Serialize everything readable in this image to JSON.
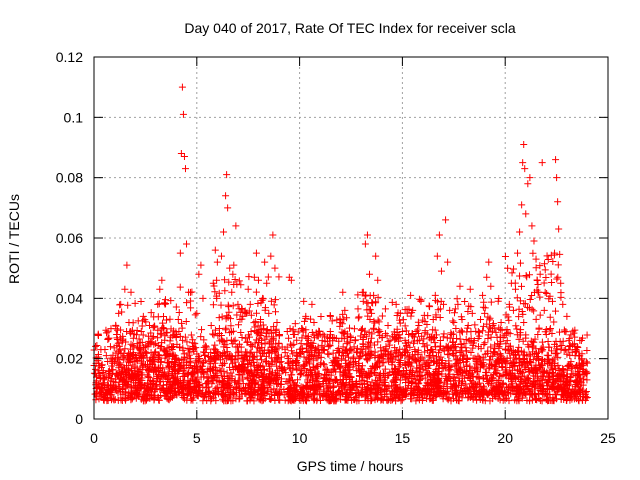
{
  "chart_data": {
    "type": "scatter",
    "title": "Day 040 of 2017, Rate Of TEC Index for receiver scla",
    "xlabel": "GPS time / hours",
    "ylabel": "ROTI / TECUs",
    "xlim": [
      0,
      25
    ],
    "ylim": [
      0,
      0.12
    ],
    "xticks": [
      0,
      5,
      10,
      15,
      20,
      25
    ],
    "xtick_labels": [
      "0",
      "5",
      "10",
      "15",
      "20",
      "25"
    ],
    "yticks": [
      0,
      0.02,
      0.04,
      0.06,
      0.08,
      0.1,
      0.12
    ],
    "ytick_labels": [
      "0",
      "0.02",
      "0.04",
      "0.06",
      "0.08",
      "0.1",
      "0.12"
    ],
    "grid": true,
    "marker": "+",
    "color": "#ff0000",
    "series": [
      {
        "name": "ROTI",
        "points": [
          [
            0.1,
            0.012
          ],
          [
            0.2,
            0.016
          ],
          [
            0.3,
            0.009
          ],
          [
            0.4,
            0.018
          ],
          [
            0.5,
            0.013
          ],
          [
            0.6,
            0.021
          ],
          [
            0.7,
            0.011
          ],
          [
            0.8,
            0.024
          ],
          [
            0.9,
            0.015
          ],
          [
            1.0,
            0.019
          ],
          [
            1.1,
            0.028
          ],
          [
            1.2,
            0.035
          ],
          [
            1.3,
            0.038
          ],
          [
            1.4,
            0.026
          ],
          [
            1.5,
            0.043
          ],
          [
            1.6,
            0.051
          ],
          [
            1.7,
            0.032
          ],
          [
            1.8,
            0.042
          ],
          [
            1.9,
            0.022
          ],
          [
            2.0,
            0.016
          ],
          [
            2.1,
            0.025
          ],
          [
            2.2,
            0.012
          ],
          [
            2.3,
            0.029
          ],
          [
            2.4,
            0.034
          ],
          [
            2.5,
            0.022
          ],
          [
            2.6,
            0.018
          ],
          [
            2.7,
            0.031
          ],
          [
            2.8,
            0.009
          ],
          [
            2.9,
            0.019
          ],
          [
            3.0,
            0.025
          ],
          [
            3.1,
            0.038
          ],
          [
            3.2,
            0.043
          ],
          [
            3.3,
            0.046
          ],
          [
            3.4,
            0.03
          ],
          [
            3.5,
            0.021
          ],
          [
            3.6,
            0.015
          ],
          [
            3.7,
            0.012
          ],
          [
            3.8,
            0.024
          ],
          [
            3.9,
            0.018
          ],
          [
            4.0,
            0.027
          ],
          [
            4.1,
            0.033
          ],
          [
            4.2,
            0.055
          ],
          [
            4.25,
            0.088
          ],
          [
            4.3,
            0.11
          ],
          [
            4.35,
            0.101
          ],
          [
            4.4,
            0.087
          ],
          [
            4.45,
            0.083
          ],
          [
            4.5,
            0.058
          ],
          [
            4.6,
            0.042
          ],
          [
            4.7,
            0.02
          ],
          [
            4.8,
            0.015
          ],
          [
            4.9,
            0.025
          ],
          [
            5.0,
            0.035
          ],
          [
            5.1,
            0.048
          ],
          [
            5.2,
            0.051
          ],
          [
            5.3,
            0.04
          ],
          [
            5.4,
            0.022
          ],
          [
            5.5,
            0.014
          ],
          [
            5.6,
            0.019
          ],
          [
            5.7,
            0.031
          ],
          [
            5.8,
            0.045
          ],
          [
            5.9,
            0.056
          ],
          [
            6.0,
            0.052
          ],
          [
            6.1,
            0.03
          ],
          [
            6.2,
            0.054
          ],
          [
            6.3,
            0.062
          ],
          [
            6.4,
            0.074
          ],
          [
            6.45,
            0.081
          ],
          [
            6.5,
            0.07
          ],
          [
            6.6,
            0.05
          ],
          [
            6.7,
            0.042
          ],
          [
            6.8,
            0.051
          ],
          [
            6.9,
            0.064
          ],
          [
            7.0,
            0.038
          ],
          [
            7.1,
            0.033
          ],
          [
            7.2,
            0.027
          ],
          [
            7.3,
            0.021
          ],
          [
            7.4,
            0.035
          ],
          [
            7.5,
            0.043
          ],
          [
            7.6,
            0.038
          ],
          [
            7.7,
            0.024
          ],
          [
            7.8,
            0.047
          ],
          [
            7.9,
            0.055
          ],
          [
            8.0,
            0.046
          ],
          [
            8.1,
            0.033
          ],
          [
            8.2,
            0.04
          ],
          [
            8.3,
            0.052
          ],
          [
            8.4,
            0.045
          ],
          [
            8.5,
            0.035
          ],
          [
            8.6,
            0.054
          ],
          [
            8.7,
            0.061
          ],
          [
            8.8,
            0.05
          ],
          [
            8.9,
            0.032
          ],
          [
            9.0,
            0.025
          ],
          [
            9.1,
            0.019
          ],
          [
            9.2,
            0.016
          ],
          [
            9.3,
            0.022
          ],
          [
            9.4,
            0.029
          ],
          [
            9.5,
            0.047
          ],
          [
            9.6,
            0.046
          ],
          [
            9.7,
            0.028
          ],
          [
            9.8,
            0.019
          ],
          [
            9.9,
            0.013
          ],
          [
            10.0,
            0.022
          ],
          [
            10.1,
            0.03
          ],
          [
            10.2,
            0.039
          ],
          [
            10.3,
            0.034
          ],
          [
            10.4,
            0.025
          ],
          [
            10.5,
            0.02
          ],
          [
            10.6,
            0.038
          ],
          [
            10.7,
            0.032
          ],
          [
            10.8,
            0.021
          ],
          [
            10.9,
            0.015
          ],
          [
            11.0,
            0.028
          ],
          [
            11.1,
            0.026
          ],
          [
            11.2,
            0.018
          ],
          [
            11.3,
            0.011
          ],
          [
            11.4,
            0.024
          ],
          [
            11.5,
            0.034
          ],
          [
            11.6,
            0.027
          ],
          [
            11.7,
            0.019
          ],
          [
            11.8,
            0.013
          ],
          [
            11.9,
            0.022
          ],
          [
            12.0,
            0.032
          ],
          [
            12.1,
            0.042
          ],
          [
            12.2,
            0.036
          ],
          [
            12.3,
            0.025
          ],
          [
            12.4,
            0.018
          ],
          [
            12.5,
            0.014
          ],
          [
            12.6,
            0.02
          ],
          [
            12.7,
            0.026
          ],
          [
            12.8,
            0.022
          ],
          [
            12.9,
            0.016
          ],
          [
            13.0,
            0.023
          ],
          [
            13.1,
            0.042
          ],
          [
            13.2,
            0.058
          ],
          [
            13.3,
            0.061
          ],
          [
            13.4,
            0.048
          ],
          [
            13.5,
            0.035
          ],
          [
            13.6,
            0.041
          ],
          [
            13.7,
            0.054
          ],
          [
            13.8,
            0.046
          ],
          [
            13.9,
            0.029
          ],
          [
            14.0,
            0.02
          ],
          [
            14.1,
            0.015
          ],
          [
            14.2,
            0.024
          ],
          [
            14.3,
            0.031
          ],
          [
            14.4,
            0.026
          ],
          [
            14.5,
            0.018
          ],
          [
            14.6,
            0.013
          ],
          [
            14.7,
            0.022
          ],
          [
            14.8,
            0.027
          ],
          [
            14.9,
            0.035
          ],
          [
            15.0,
            0.029
          ],
          [
            15.1,
            0.022
          ],
          [
            15.2,
            0.016
          ],
          [
            15.3,
            0.028
          ],
          [
            15.4,
            0.041
          ],
          [
            15.5,
            0.036
          ],
          [
            15.6,
            0.023
          ],
          [
            15.7,
            0.019
          ],
          [
            15.8,
            0.031
          ],
          [
            15.9,
            0.039
          ],
          [
            16.0,
            0.025
          ],
          [
            16.1,
            0.018
          ],
          [
            16.2,
            0.012
          ],
          [
            16.3,
            0.021
          ],
          [
            16.4,
            0.027
          ],
          [
            16.5,
            0.033
          ],
          [
            16.6,
            0.041
          ],
          [
            16.7,
            0.054
          ],
          [
            16.8,
            0.061
          ],
          [
            16.9,
            0.049
          ],
          [
            17.0,
            0.038
          ],
          [
            17.1,
            0.066
          ],
          [
            17.2,
            0.052
          ],
          [
            17.3,
            0.036
          ],
          [
            17.4,
            0.028
          ],
          [
            17.5,
            0.021
          ],
          [
            17.6,
            0.03
          ],
          [
            17.7,
            0.038
          ],
          [
            17.8,
            0.044
          ],
          [
            17.9,
            0.033
          ],
          [
            18.0,
            0.025
          ],
          [
            18.1,
            0.019
          ],
          [
            18.2,
            0.031
          ],
          [
            18.3,
            0.043
          ],
          [
            18.4,
            0.035
          ],
          [
            18.5,
            0.026
          ],
          [
            18.6,
            0.019
          ],
          [
            18.7,
            0.024
          ],
          [
            18.8,
            0.033
          ],
          [
            18.9,
            0.041
          ],
          [
            19.0,
            0.035
          ],
          [
            19.1,
            0.047
          ],
          [
            19.2,
            0.052
          ],
          [
            19.3,
            0.044
          ],
          [
            19.4,
            0.031
          ],
          [
            19.5,
            0.022
          ],
          [
            19.6,
            0.015
          ],
          [
            19.7,
            0.024
          ],
          [
            19.8,
            0.032
          ],
          [
            19.9,
            0.027
          ],
          [
            20.0,
            0.019
          ],
          [
            20.1,
            0.026
          ],
          [
            20.2,
            0.038
          ],
          [
            20.3,
            0.045
          ],
          [
            20.4,
            0.036
          ],
          [
            20.5,
            0.043
          ],
          [
            20.6,
            0.055
          ],
          [
            20.7,
            0.062
          ],
          [
            20.8,
            0.071
          ],
          [
            20.85,
            0.085
          ],
          [
            20.9,
            0.091
          ],
          [
            20.95,
            0.083
          ],
          [
            21.0,
            0.068
          ],
          [
            21.1,
            0.078
          ],
          [
            21.2,
            0.08
          ],
          [
            21.3,
            0.064
          ],
          [
            21.4,
            0.059
          ],
          [
            21.5,
            0.053
          ],
          [
            21.6,
            0.042
          ],
          [
            21.7,
            0.048
          ],
          [
            21.8,
            0.085
          ],
          [
            21.9,
            0.036
          ],
          [
            22.0,
            0.028
          ],
          [
            22.1,
            0.021
          ],
          [
            22.2,
            0.03
          ],
          [
            22.3,
            0.039
          ],
          [
            22.4,
            0.055
          ],
          [
            22.45,
            0.086
          ],
          [
            22.5,
            0.08
          ],
          [
            22.55,
            0.072
          ],
          [
            22.6,
            0.063
          ],
          [
            22.7,
            0.045
          ],
          [
            22.8,
            0.038
          ],
          [
            22.9,
            0.029
          ],
          [
            23.0,
            0.034
          ],
          [
            23.1,
            0.026
          ],
          [
            23.2,
            0.019
          ],
          [
            23.3,
            0.015
          ],
          [
            23.4,
            0.021
          ],
          [
            23.5,
            0.024
          ],
          [
            23.6,
            0.018
          ],
          [
            23.7,
            0.012
          ]
        ],
        "bands": [
          {
            "x": [
              0.0,
              24.0
            ],
            "y": [
              0.006,
              0.024
            ]
          },
          {
            "x": [
              0.0,
              24.0
            ],
            "y": [
              0.008,
              0.03
            ]
          },
          {
            "x": [
              1.0,
              4.0
            ],
            "y": [
              0.01,
              0.04
            ]
          },
          {
            "x": [
              4.0,
              5.0
            ],
            "y": [
              0.008,
              0.045
            ]
          },
          {
            "x": [
              5.8,
              9.0
            ],
            "y": [
              0.01,
              0.048
            ]
          },
          {
            "x": [
              9.5,
              12.5
            ],
            "y": [
              0.006,
              0.035
            ]
          },
          {
            "x": [
              12.8,
              14.2
            ],
            "y": [
              0.008,
              0.042
            ]
          },
          {
            "x": [
              14.5,
              19.8
            ],
            "y": [
              0.008,
              0.04
            ]
          },
          {
            "x": [
              20.0,
              22.8
            ],
            "y": [
              0.01,
              0.055
            ]
          },
          {
            "x": [
              22.8,
              23.8
            ],
            "y": [
              0.006,
              0.03
            ]
          }
        ]
      }
    ]
  }
}
